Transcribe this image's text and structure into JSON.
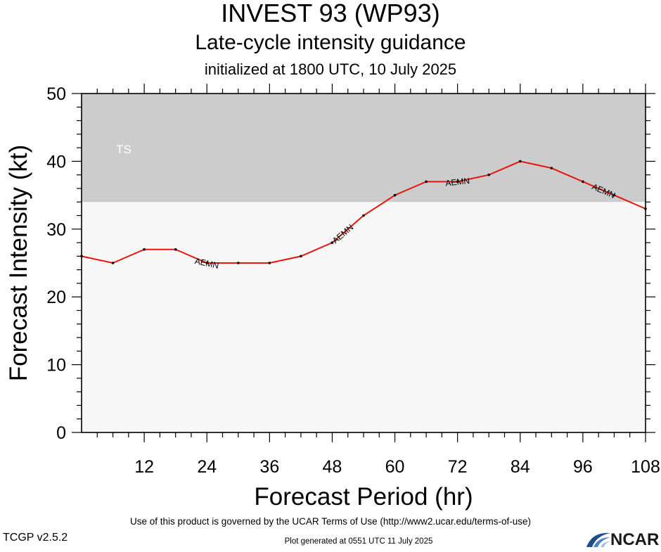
{
  "header": {
    "title": "INVEST 93 (WP93)",
    "subtitle": "Late-cycle intensity guidance",
    "init_line": "initialized at 1800 UTC, 10 July 2025"
  },
  "chart_data": {
    "type": "line",
    "xlabel": "Forecast Period (hr)",
    "ylabel": "Forecast Intensity (kt)",
    "xlim": [
      0,
      108
    ],
    "ylim": [
      0,
      50
    ],
    "x_ticks": [
      12,
      24,
      36,
      48,
      60,
      72,
      84,
      96,
      108
    ],
    "y_ticks": [
      0,
      10,
      20,
      30,
      40,
      50
    ],
    "grid": false,
    "bands": [
      {
        "label": "TS",
        "from": 34,
        "to": 50,
        "color": "#cccccc"
      }
    ],
    "below_band_color": "#f7f7f7",
    "series": [
      {
        "name": "AEMN",
        "color": "#e8140d",
        "x": [
          0,
          6,
          12,
          18,
          24,
          30,
          36,
          42,
          48,
          54,
          60,
          66,
          72,
          78,
          84,
          90,
          96,
          102,
          108
        ],
        "y": [
          26,
          25,
          27,
          27,
          25,
          25,
          25,
          26,
          28,
          32,
          35,
          37,
          37,
          38,
          40,
          39,
          37,
          35,
          33
        ],
        "label_positions": [
          24,
          50,
          72,
          100
        ]
      }
    ]
  },
  "footer": {
    "terms": "Use of this product is governed by the UCAR Terms of Use (http://www2.ucar.edu/terms-of-use)",
    "version": "TCGP v2.5.2",
    "generated": "Plot generated at 0551 UTC   11 July 2025",
    "logo_text": "NCAR",
    "logo_color": "#1f4f8a"
  }
}
